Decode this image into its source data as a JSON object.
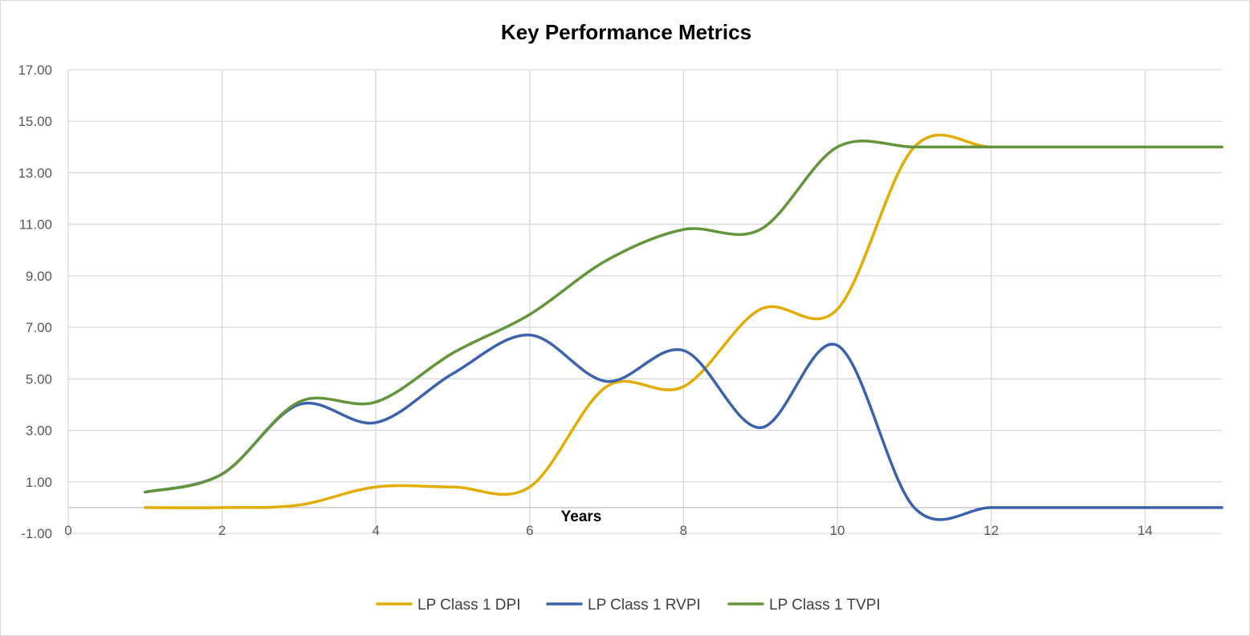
{
  "chart_data": {
    "type": "line",
    "title": "Key Performance Metrics",
    "xlabel": "Years",
    "ylabel": "",
    "xlim": [
      0,
      15
    ],
    "ylim": [
      -1,
      17
    ],
    "x_ticks": [
      0,
      2,
      4,
      6,
      8,
      10,
      12,
      14
    ],
    "y_ticks": [
      -1,
      1,
      3,
      5,
      7,
      9,
      11,
      13,
      15,
      17
    ],
    "y_tick_decimals": 2,
    "smooth": true,
    "grid": true,
    "legend_position": "bottom",
    "x": [
      1,
      2,
      3,
      4,
      5,
      6,
      7,
      8,
      9,
      10,
      11,
      12,
      13,
      14,
      15
    ],
    "series": [
      {
        "name": "LP Class 1 DPI",
        "color": "#e3ac00",
        "values": [
          0.0,
          0.0,
          0.1,
          0.8,
          0.8,
          0.8,
          4.7,
          4.7,
          7.7,
          7.7,
          14.0,
          14.0,
          14.0,
          14.0,
          14.0
        ]
      },
      {
        "name": "LP Class 1 RVPI",
        "color": "#3b62ad",
        "values": [
          0.6,
          1.3,
          4.0,
          3.3,
          5.2,
          6.7,
          4.9,
          6.1,
          3.1,
          6.3,
          0.0,
          0.0,
          0.0,
          0.0,
          0.0
        ]
      },
      {
        "name": "LP Class 1 TVPI",
        "color": "#63953a",
        "values": [
          0.6,
          1.3,
          4.1,
          4.1,
          6.0,
          7.5,
          9.6,
          10.8,
          10.8,
          14.0,
          14.0,
          14.0,
          14.0,
          14.0,
          14.0
        ]
      }
    ]
  }
}
